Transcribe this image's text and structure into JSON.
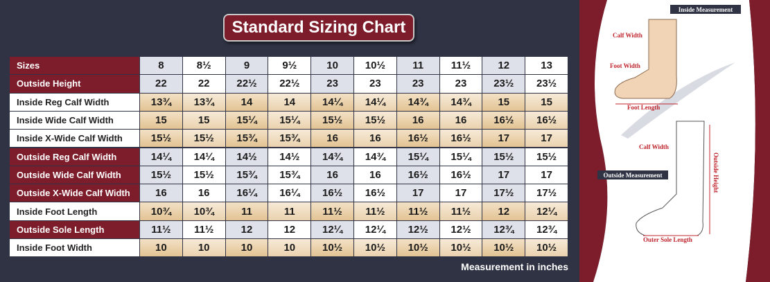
{
  "title": "Standard Sizing Chart",
  "table": {
    "header": {
      "label": "Sizes",
      "cells": [
        "8",
        "8½",
        "9",
        "9½",
        "10",
        "10½",
        "11",
        "11½",
        "12",
        "13"
      ]
    },
    "rows": [
      {
        "label": "Outside Height",
        "cells": [
          "22",
          "22",
          "22½",
          "22½",
          "23",
          "23",
          "23",
          "23",
          "23½",
          "23½"
        ]
      },
      {
        "label": "Inside Reg Calf Width",
        "cells": [
          "13¾",
          "13¾",
          "14",
          "14",
          "14¼",
          "14¼",
          "14¾",
          "14¾",
          "15",
          "15"
        ]
      },
      {
        "label": "Inside Wide Calf Width",
        "cells": [
          "15",
          "15",
          "15¼",
          "15¼",
          "15½",
          "15½",
          "16",
          "16",
          "16½",
          "16½"
        ]
      },
      {
        "label": "Inside X-Wide Calf Width",
        "cells": [
          "15½",
          "15½",
          "15¾",
          "15¾",
          "16",
          "16",
          "16½",
          "16½",
          "17",
          "17"
        ]
      },
      {
        "label": "Outside Reg Calf Width",
        "cells": [
          "14¼",
          "14¼",
          "14½",
          "14½",
          "14¾",
          "14¾",
          "15¼",
          "15¼",
          "15½",
          "15½"
        ]
      },
      {
        "label": "Outside Wide Calf Width",
        "cells": [
          "15½",
          "15½",
          "15¾",
          "15¾",
          "16",
          "16",
          "16½",
          "16½",
          "17",
          "17"
        ]
      },
      {
        "label": "Outside X-Wide Calf Width",
        "cells": [
          "16",
          "16",
          "16¼",
          "16¼",
          "16½",
          "16½",
          "17",
          "17",
          "17½",
          "17½"
        ]
      },
      {
        "label": "Inside Foot Length",
        "cells": [
          "10¾",
          "10¾",
          "11",
          "11",
          "11½",
          "11½",
          "11½",
          "11½",
          "12",
          "12¼"
        ]
      },
      {
        "label": "Outside Sole Length",
        "cells": [
          "11½",
          "11½",
          "12",
          "12",
          "12¼",
          "12¼",
          "12½",
          "12½",
          "12¾",
          "12¾"
        ]
      },
      {
        "label": "Inside Foot Width",
        "cells": [
          "10",
          "10",
          "10",
          "10",
          "10½",
          "10½",
          "10½",
          "10½",
          "10½",
          "10½"
        ]
      }
    ]
  },
  "footnote": "Measurement in inches",
  "diagram": {
    "inside_title": "Inside Measurement",
    "inside_labels": [
      "Calf Width",
      "Foot Width",
      "Foot Length"
    ],
    "outside_title": "Outside Measurement",
    "outside_labels": [
      "Calf Width",
      "Outside Height",
      "Outer Sole Length"
    ]
  }
}
